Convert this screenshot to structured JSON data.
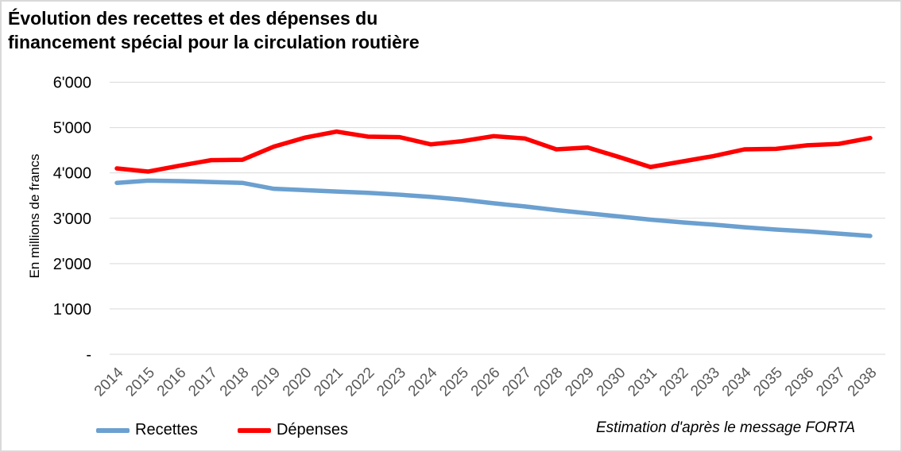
{
  "chart_data": {
    "type": "line",
    "title": "Évolution des recettes et des dépenses du financement spécial pour la circulation routière",
    "title_lines": [
      "Évolution des recettes et des dépenses du",
      "financement spécial pour la circulation routière"
    ],
    "ylabel": "En millions de francs",
    "xlabel": "",
    "ylim": [
      0,
      6000
    ],
    "ytick_step": 1000,
    "ytick_labels": [
      "-",
      "1'000",
      "2'000",
      "3'000",
      "4'000",
      "5'000",
      "6'000"
    ],
    "grid": true,
    "legend_position": "bottom-left",
    "footnote": "Estimation d'après le message FORTA",
    "colors": {
      "gridline": "#d9d9d9",
      "ytick_text": "#000000",
      "xtick_text": "#595959"
    },
    "x": [
      "2014",
      "2015",
      "2016",
      "2017",
      "2018",
      "2019",
      "2020",
      "2021",
      "2022",
      "2023",
      "2024",
      "2025",
      "2026",
      "2027",
      "2028",
      "2029",
      "2030",
      "2031",
      "2032",
      "2033",
      "2034",
      "2035",
      "2036",
      "2037",
      "2038"
    ],
    "series": [
      {
        "key": "recettes",
        "name": "Recettes",
        "color": "#6ba0d0",
        "values": [
          3780,
          3830,
          3820,
          3800,
          3780,
          3650,
          3620,
          3590,
          3560,
          3520,
          3470,
          3410,
          3330,
          3260,
          3180,
          3110,
          3040,
          2970,
          2910,
          2860,
          2800,
          2750,
          2710,
          2660,
          2610
        ]
      },
      {
        "key": "depenses",
        "name": "Dépenses",
        "color": "#fe0000",
        "values": [
          4100,
          4030,
          4160,
          4280,
          4290,
          4580,
          4780,
          4910,
          4800,
          4790,
          4630,
          4700,
          4810,
          4760,
          4520,
          4560,
          4350,
          4130,
          4250,
          4370,
          4520,
          4530,
          4610,
          4640,
          4770
        ]
      }
    ]
  }
}
